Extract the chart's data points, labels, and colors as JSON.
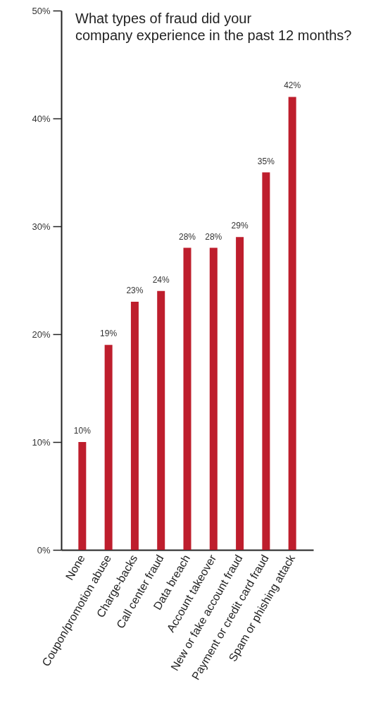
{
  "chart_data": {
    "type": "bar",
    "title": "What types of fraud did your company experience in the past 12 months?",
    "categories": [
      "None",
      "Coupon/promotion abuse",
      "Charge-backs",
      "Call center fraud",
      "Data breach",
      "Account takeover",
      "New or fake account fraud",
      "Payment or credit card fraud",
      "Spam or phishing attack"
    ],
    "values": [
      10,
      19,
      23,
      24,
      28,
      28,
      29,
      35,
      42
    ],
    "value_labels": [
      "10%",
      "19%",
      "23%",
      "24%",
      "28%",
      "28%",
      "29%",
      "35%",
      "42%"
    ],
    "color": "#be1e2d",
    "ylim": [
      0,
      50
    ],
    "yticks": [
      {
        "value": 0,
        "label": "0%"
      },
      {
        "value": 10,
        "label": "10%"
      },
      {
        "value": 20,
        "label": "20%"
      },
      {
        "value": 30,
        "label": "30%"
      },
      {
        "value": 40,
        "label": "40%"
      },
      {
        "value": 50,
        "label": "50%"
      }
    ],
    "grid": false
  }
}
